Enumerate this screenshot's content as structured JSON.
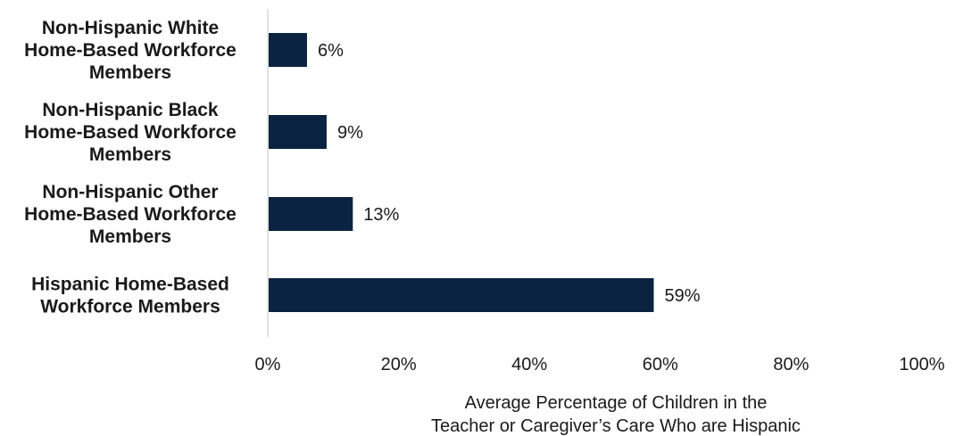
{
  "chart_data": {
    "type": "bar",
    "orientation": "horizontal",
    "categories": [
      [
        "Non-Hispanic White",
        "Home-Based Workforce",
        "Members"
      ],
      [
        "Non-Hispanic Black",
        "Home-Based Workforce",
        "Members"
      ],
      [
        "Non-Hispanic Other",
        "Home-Based Workforce",
        "Members"
      ],
      [
        "Hispanic Home-Based",
        "Workforce Members"
      ]
    ],
    "values": [
      6,
      9,
      13,
      59
    ],
    "data_labels": [
      "6%",
      "9%",
      "13%",
      "59%"
    ],
    "xlim": [
      0,
      100
    ],
    "x_ticks": [
      0,
      20,
      40,
      60,
      80,
      100
    ],
    "x_tick_labels": [
      "0%",
      "20%",
      "40%",
      "60%",
      "80%",
      "100%"
    ],
    "xlabel": [
      "Average Percentage of Children in the",
      "Teacher or Caregiver’s Care Who are Hispanic"
    ],
    "ylabel": "",
    "grid": false,
    "colors": {
      "bar": "#0b2341",
      "axis": "#d9d9d9",
      "text": "#1a1a1a"
    }
  }
}
